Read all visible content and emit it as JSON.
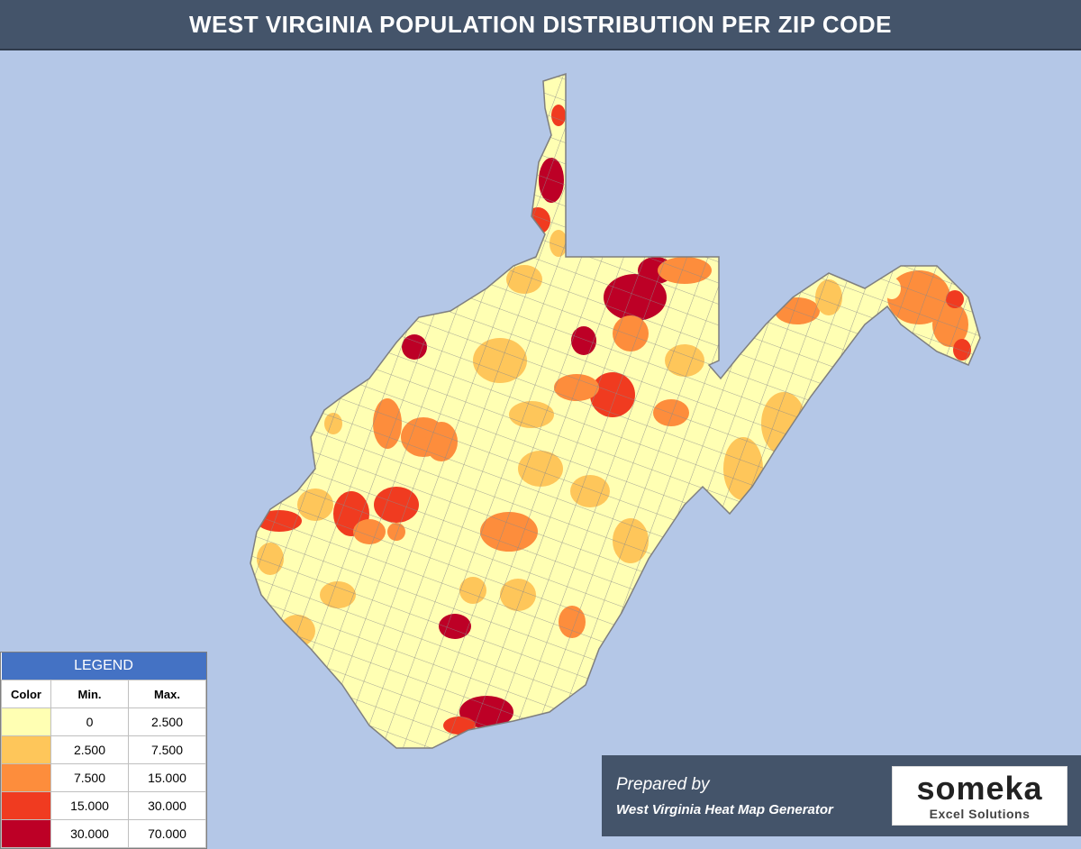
{
  "title": "WEST VIRGINIA POPULATION DISTRIBUTION PER ZIP CODE",
  "legend": {
    "heading": "LEGEND",
    "col_color": "Color",
    "col_min": "Min.",
    "col_max": "Max.",
    "rows": [
      {
        "color": "#ffffb3",
        "min": "0",
        "max": "2.500"
      },
      {
        "color": "#fec65a",
        "min": "2.500",
        "max": "7.500"
      },
      {
        "color": "#fd8d3c",
        "min": "7.500",
        "max": "15.000"
      },
      {
        "color": "#f03b20",
        "min": "15.000",
        "max": "30.000"
      },
      {
        "color": "#bd0026",
        "min": "30.000",
        "max": "70.000"
      }
    ]
  },
  "colors": {
    "background": "#b4c7e7",
    "title_bar": "#44546a",
    "map_border": "#7f7f7f"
  },
  "footer": {
    "prepared_by": "Prepared by",
    "generator": "West Virginia Heat Map Generator",
    "logo_brand": "someka",
    "logo_sub": "Excel Solutions"
  }
}
